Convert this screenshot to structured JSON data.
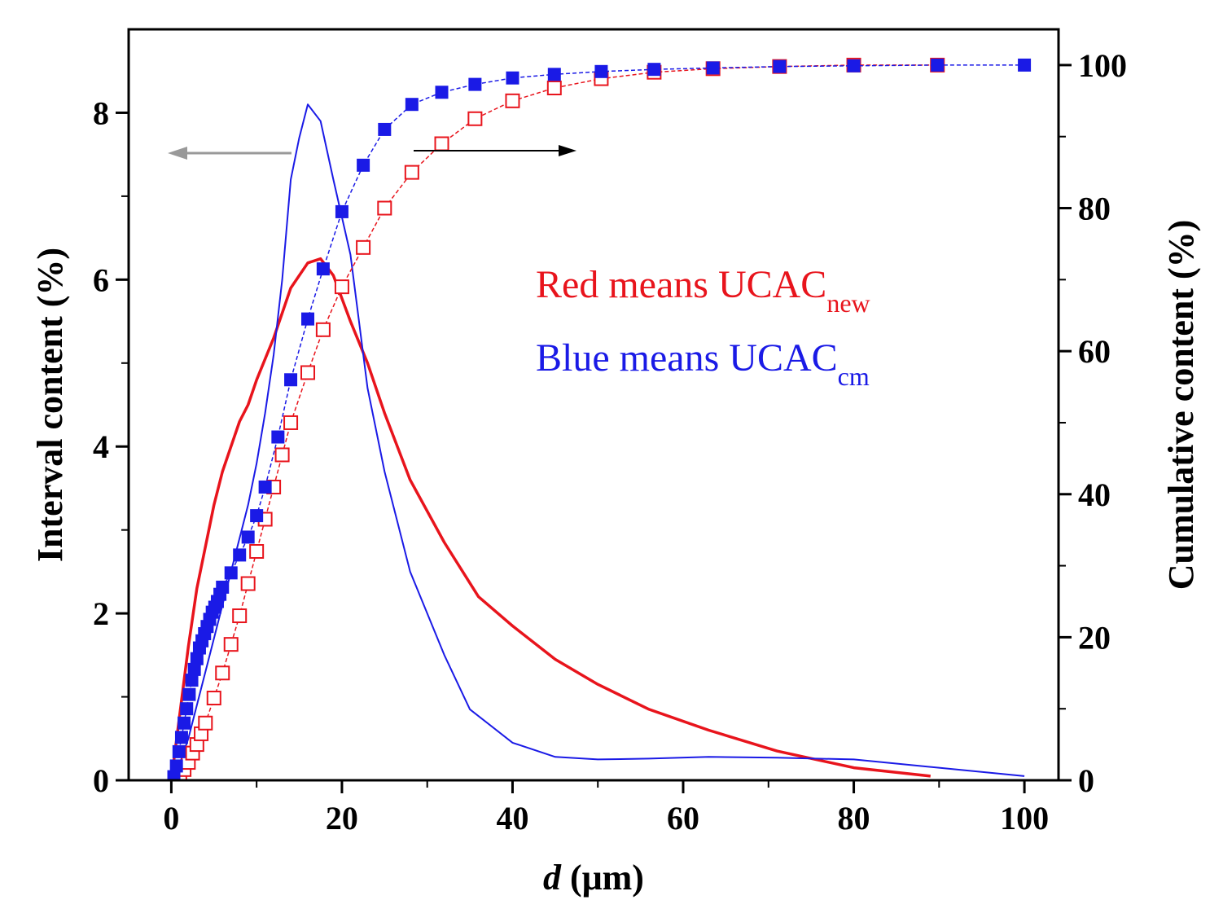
{
  "chart_data": {
    "type": "line",
    "title": "",
    "xlabel": {
      "italic": "d",
      "rest": " (μm)"
    },
    "ylabel_left": "Interval content (%)",
    "ylabel_right": "Cumulative content (%)",
    "xlim": [
      -5,
      104
    ],
    "ylim_left": [
      0,
      9
    ],
    "ylim_right": [
      0,
      105
    ],
    "xticks": [
      0,
      20,
      40,
      60,
      80,
      100
    ],
    "yticks_left": [
      0,
      2,
      4,
      6,
      8
    ],
    "yticks_right": [
      0,
      20,
      40,
      60,
      80,
      100
    ],
    "colors": {
      "red": "#e8141c",
      "blue": "#1a1ae6",
      "arrow_left": "#999999",
      "arrow_right": "#000000"
    },
    "annotations": [
      {
        "text": "Red means UCAC",
        "sub": "new",
        "color": "#e8141c"
      },
      {
        "text": "Blue means UCAC",
        "sub": "cm",
        "color": "#1a1ae6"
      }
    ],
    "series": [
      {
        "name": "UCACnew interval",
        "axis": "left",
        "style": "line",
        "color": "#e8141c",
        "x": [
          0,
          1,
          2,
          3,
          4,
          5,
          6,
          7,
          8,
          9,
          10,
          12,
          14,
          16,
          17.5,
          19,
          21,
          23,
          25,
          28,
          32,
          36,
          40,
          45,
          50,
          56,
          63,
          71,
          80,
          89
        ],
        "y": [
          0,
          0.8,
          1.6,
          2.3,
          2.8,
          3.3,
          3.7,
          4.0,
          4.3,
          4.5,
          4.8,
          5.3,
          5.9,
          6.2,
          6.25,
          6.05,
          5.5,
          5.0,
          4.4,
          3.6,
          2.85,
          2.2,
          1.85,
          1.45,
          1.15,
          0.85,
          0.6,
          0.35,
          0.15,
          0.05
        ]
      },
      {
        "name": "UCACcm interval",
        "axis": "left",
        "style": "line",
        "color": "#1a1ae6",
        "x": [
          0,
          1,
          2,
          3,
          4,
          5,
          6,
          7,
          8,
          9,
          10,
          11,
          12,
          13,
          14,
          15,
          16,
          17.5,
          19,
          21,
          23,
          25,
          28,
          32,
          35,
          40,
          45,
          50,
          56,
          63,
          71,
          80,
          90,
          100
        ],
        "y": [
          0,
          0.2,
          0.5,
          0.9,
          1.3,
          1.7,
          2.1,
          2.5,
          2.9,
          3.3,
          3.8,
          4.4,
          5.1,
          6.0,
          7.2,
          7.7,
          8.1,
          7.9,
          7.2,
          6.3,
          4.7,
          3.7,
          2.5,
          1.5,
          0.85,
          0.45,
          0.28,
          0.25,
          0.26,
          0.28,
          0.27,
          0.25,
          0.15,
          0.05
        ]
      },
      {
        "name": "UCACnew cumulative",
        "axis": "right",
        "style": "open-square",
        "color": "#e8141c",
        "x": [
          1,
          1.5,
          2,
          2.5,
          3,
          3.5,
          4,
          5,
          6,
          7,
          8,
          9,
          10,
          11,
          12,
          13,
          14,
          16,
          17.8,
          20,
          22.5,
          25,
          28.2,
          31.7,
          35.6,
          40,
          44.9,
          50.4,
          56.6,
          63.5,
          71.3,
          80,
          89.8
        ],
        "y": [
          0.5,
          1.5,
          2.5,
          3.8,
          5.0,
          6.5,
          8.0,
          11.5,
          15.0,
          19.0,
          23.0,
          27.5,
          32.0,
          36.5,
          41.0,
          45.5,
          50.0,
          57.0,
          63.0,
          69.0,
          74.5,
          80.0,
          85.0,
          89.0,
          92.5,
          95.0,
          96.8,
          98.1,
          99.0,
          99.5,
          99.8,
          100,
          100
        ]
      },
      {
        "name": "UCACcm cumulative",
        "axis": "right",
        "style": "filled-square",
        "color": "#1a1ae6",
        "x": [
          0.3,
          0.6,
          0.9,
          1.2,
          1.5,
          1.8,
          2.1,
          2.4,
          2.7,
          3.0,
          3.3,
          3.6,
          3.9,
          4.2,
          4.5,
          4.8,
          5.1,
          5.4,
          5.7,
          6,
          7,
          8,
          9,
          10,
          11,
          12.5,
          14,
          16,
          17.8,
          20,
          22.5,
          25,
          28.2,
          31.7,
          35.6,
          40,
          44.9,
          50.4,
          56.6,
          63.5,
          71.3,
          80,
          89.8,
          100
        ],
        "y": [
          0.5,
          2.0,
          4.0,
          6.0,
          8.0,
          10.0,
          12.0,
          14.0,
          15.5,
          17.0,
          18.5,
          19.5,
          20.5,
          21.5,
          22.5,
          23.5,
          24.2,
          25.0,
          26.0,
          27.0,
          29.0,
          31.5,
          34.0,
          37.0,
          41.0,
          48.0,
          56.0,
          64.5,
          71.5,
          79.5,
          86.0,
          91.0,
          94.5,
          96.2,
          97.3,
          98.2,
          98.7,
          99.1,
          99.4,
          99.6,
          99.8,
          99.9,
          100,
          100
        ]
      }
    ]
  }
}
